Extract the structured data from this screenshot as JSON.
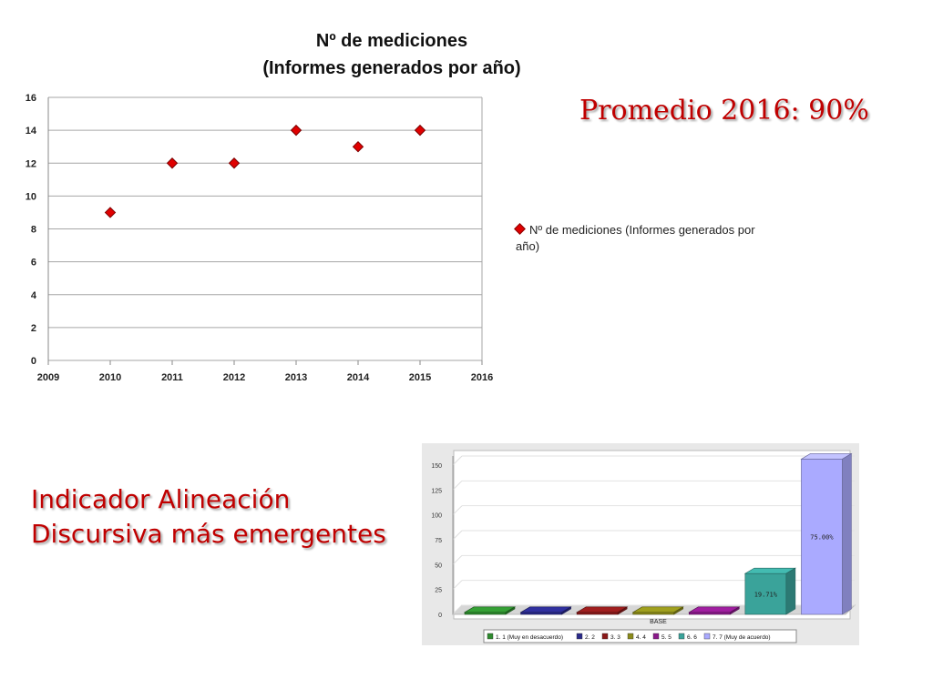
{
  "promedio": "Promedio 2016: 90%",
  "indicador": {
    "line1": "Indicador Alineación",
    "line2": "Discursiva  más emergentes"
  },
  "chart_data": [
    {
      "type": "scatter",
      "title": "Nº de mediciones",
      "subtitle": "(Informes generados por año)",
      "x": [
        2010,
        2011,
        2012,
        2013,
        2014,
        2015
      ],
      "y": [
        9,
        12,
        12,
        14,
        13,
        14
      ],
      "xlim": [
        2009,
        2016
      ],
      "ylim": [
        0,
        16
      ],
      "xticks": [
        2009,
        2010,
        2011,
        2012,
        2013,
        2014,
        2015,
        2016
      ],
      "yticks": [
        0,
        2,
        4,
        6,
        8,
        10,
        12,
        14,
        16
      ],
      "grid": true,
      "legend_position": "right",
      "series": [
        {
          "name": "Nº de mediciones (Informes generados por año)",
          "color": "#e00000"
        }
      ]
    },
    {
      "type": "bar",
      "xlabel": "BASE",
      "ylim": [
        0,
        150
      ],
      "yticks": [
        0,
        25,
        50,
        75,
        100,
        125,
        150
      ],
      "grid": true,
      "legend_position": "bottom",
      "series": [
        {
          "name": "1. 1 (Muy en desacuerdo)",
          "value": 2,
          "color": "#2e8b2e",
          "label": ""
        },
        {
          "name": "2. 2",
          "value": 2,
          "color": "#2a2a8a",
          "label": ""
        },
        {
          "name": "3. 3",
          "value": 2,
          "color": "#8b1a1a",
          "label": ""
        },
        {
          "name": "4. 4",
          "value": 2,
          "color": "#8b8b1a",
          "label": ""
        },
        {
          "name": "5. 5",
          "value": 2,
          "color": "#8b1a8b",
          "label": ""
        },
        {
          "name": "6. 6",
          "value": 41,
          "color": "#3aa39a",
          "label": "19.71%"
        },
        {
          "name": "7. 7 (Muy de acuerdo)",
          "value": 156,
          "color": "#aaaaff",
          "label": "75.00%"
        }
      ]
    }
  ]
}
